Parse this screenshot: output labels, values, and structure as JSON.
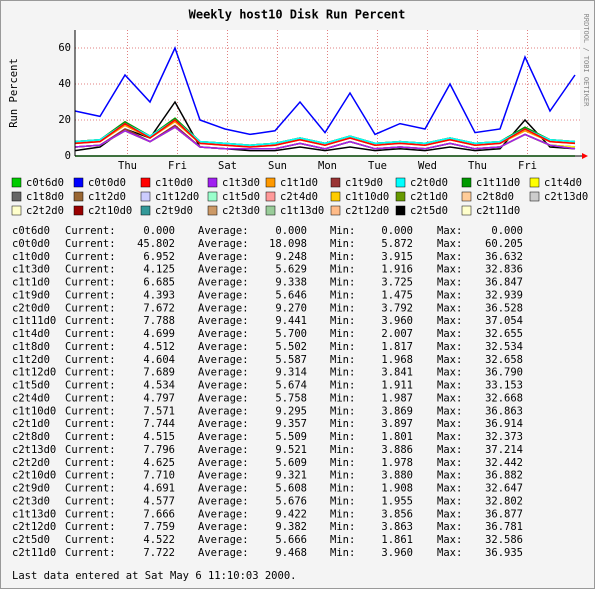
{
  "chart_data": {
    "type": "line",
    "title": "Weekly host10 Disk Run Percent",
    "y_label": "Run Percent",
    "side_note": "RRDTOOL / TOBI OETIKER",
    "xlim": [
      0,
      10.1
    ],
    "ylim": [
      0,
      70
    ],
    "xticks": [
      {
        "value": 1.05,
        "label": "Thu"
      },
      {
        "value": 2.05,
        "label": "Fri"
      },
      {
        "value": 3.05,
        "label": "Sat"
      },
      {
        "value": 4.05,
        "label": "Sun"
      },
      {
        "value": 5.05,
        "label": "Mon"
      },
      {
        "value": 6.05,
        "label": "Tue"
      },
      {
        "value": 7.05,
        "label": "Wed"
      },
      {
        "value": 8.05,
        "label": "Thu"
      },
      {
        "value": 9.05,
        "label": "Fri"
      }
    ],
    "yticks": [
      0,
      20,
      40,
      60
    ],
    "grid": true,
    "x": [
      0,
      0.5,
      1,
      1.5,
      2,
      2.5,
      3,
      3.5,
      4,
      4.5,
      5,
      5.5,
      6,
      6.5,
      7,
      7.5,
      8,
      8.5,
      9,
      9.5,
      10
    ],
    "series": [
      {
        "name": "c0t6d0",
        "color": "#00cc00",
        "values": [
          0,
          0,
          0,
          0,
          0,
          0,
          0,
          0,
          0,
          0,
          0,
          0,
          0,
          0,
          0,
          0,
          0,
          0,
          0,
          0,
          0
        ]
      },
      {
        "name": "c0t0d0",
        "color": "#0000ff",
        "values": [
          25,
          22,
          45,
          30,
          60,
          20,
          15,
          12,
          14,
          30,
          13,
          35,
          12,
          18,
          15,
          40,
          13,
          15,
          55,
          25,
          45
        ]
      },
      {
        "name": "c1t0d0",
        "color": "#ff0000",
        "values": [
          7,
          8,
          18,
          10,
          20,
          7,
          6,
          5,
          6,
          9,
          6,
          10,
          6,
          7,
          6,
          9,
          6,
          7,
          15,
          8,
          7
        ]
      },
      {
        "name": "c1t3d0",
        "color": "#a020f0",
        "values": [
          5,
          6,
          14,
          8,
          16,
          5,
          4,
          4,
          4,
          7,
          4,
          8,
          4,
          5,
          4,
          7,
          4,
          5,
          12,
          6,
          4
        ]
      },
      {
        "name": "c1t1d0",
        "color": "#ff9900",
        "values": [
          7,
          8,
          17,
          10,
          19,
          7,
          6,
          5,
          6,
          9,
          6,
          10,
          6,
          7,
          6,
          9,
          6,
          7,
          14,
          8,
          7
        ]
      },
      {
        "name": "c1t9d0",
        "color": "#993333",
        "values": [
          5,
          6,
          15,
          8,
          17,
          5,
          4,
          4,
          4,
          7,
          4,
          8,
          4,
          5,
          4,
          7,
          4,
          5,
          12,
          6,
          4
        ]
      },
      {
        "name": "c2t0d0",
        "color": "#00ffff",
        "values": [
          8,
          9,
          18,
          11,
          20,
          8,
          7,
          6,
          7,
          10,
          7,
          11,
          7,
          8,
          7,
          10,
          7,
          8,
          15,
          9,
          8
        ]
      },
      {
        "name": "c1t11d0",
        "color": "#009900",
        "values": [
          8,
          9,
          19,
          11,
          21,
          8,
          7,
          6,
          7,
          10,
          7,
          11,
          7,
          8,
          7,
          10,
          7,
          8,
          16,
          9,
          8
        ]
      },
      {
        "name": "c1t4d0",
        "color": "#ffff00",
        "values": [
          5,
          6,
          14,
          8,
          16,
          5,
          4,
          4,
          4,
          7,
          4,
          8,
          4,
          5,
          4,
          7,
          4,
          5,
          12,
          6,
          5
        ]
      },
      {
        "name": "c1t8d0",
        "color": "#666666",
        "values": [
          5,
          6,
          14,
          8,
          16,
          5,
          4,
          4,
          4,
          7,
          4,
          8,
          4,
          5,
          4,
          7,
          4,
          5,
          12,
          6,
          5
        ]
      },
      {
        "name": "c1t2d0",
        "color": "#996633",
        "values": [
          5,
          6,
          14,
          8,
          16,
          5,
          4,
          4,
          4,
          7,
          4,
          8,
          4,
          5,
          4,
          7,
          4,
          5,
          12,
          6,
          5
        ]
      },
      {
        "name": "c1t12d0",
        "color": "#ccccff",
        "values": [
          8,
          9,
          18,
          11,
          20,
          8,
          7,
          6,
          7,
          10,
          7,
          11,
          7,
          8,
          7,
          10,
          7,
          8,
          15,
          9,
          8
        ]
      },
      {
        "name": "c1t5d0",
        "color": "#99ffcc",
        "values": [
          5,
          6,
          15,
          8,
          17,
          5,
          4,
          4,
          4,
          7,
          4,
          8,
          4,
          5,
          4,
          7,
          4,
          5,
          12,
          6,
          5
        ]
      },
      {
        "name": "c2t4d0",
        "color": "#ff9999",
        "values": [
          5,
          6,
          15,
          8,
          17,
          5,
          4,
          4,
          4,
          7,
          4,
          8,
          4,
          5,
          4,
          7,
          4,
          5,
          12,
          6,
          5
        ]
      },
      {
        "name": "c1t10d0",
        "color": "#ffcc00",
        "values": [
          8,
          9,
          18,
          11,
          20,
          8,
          7,
          6,
          7,
          10,
          7,
          11,
          7,
          8,
          7,
          10,
          7,
          8,
          15,
          9,
          8
        ]
      },
      {
        "name": "c2t1d0",
        "color": "#669900",
        "values": [
          8,
          9,
          18,
          11,
          20,
          8,
          7,
          6,
          7,
          10,
          7,
          11,
          7,
          8,
          7,
          10,
          7,
          8,
          15,
          9,
          8
        ]
      },
      {
        "name": "c2t8d0",
        "color": "#ffcc99",
        "values": [
          5,
          6,
          14,
          8,
          16,
          5,
          4,
          4,
          4,
          7,
          4,
          8,
          4,
          5,
          4,
          7,
          4,
          5,
          12,
          6,
          5
        ]
      },
      {
        "name": "c2t13d0",
        "color": "#cccccc",
        "values": [
          8,
          9,
          19,
          11,
          21,
          8,
          7,
          6,
          7,
          10,
          7,
          11,
          7,
          8,
          7,
          10,
          7,
          8,
          16,
          9,
          8
        ]
      },
      {
        "name": "c2t2d0",
        "color": "#ffffcc",
        "values": [
          5,
          6,
          14,
          8,
          16,
          5,
          4,
          4,
          4,
          7,
          4,
          8,
          4,
          5,
          4,
          7,
          4,
          5,
          12,
          6,
          5
        ]
      },
      {
        "name": "c2t10d0",
        "color": "#990000",
        "values": [
          8,
          9,
          18,
          11,
          20,
          8,
          7,
          6,
          7,
          10,
          7,
          11,
          7,
          8,
          7,
          10,
          7,
          8,
          15,
          9,
          8
        ]
      },
      {
        "name": "c2t9d0",
        "color": "#339999",
        "values": [
          5,
          6,
          14,
          8,
          16,
          5,
          4,
          4,
          4,
          7,
          4,
          8,
          4,
          5,
          4,
          7,
          4,
          5,
          12,
          6,
          5
        ]
      },
      {
        "name": "c2t3d0",
        "color": "#cc9966",
        "values": [
          5,
          6,
          14,
          8,
          16,
          5,
          4,
          4,
          4,
          7,
          4,
          8,
          4,
          5,
          4,
          7,
          4,
          5,
          12,
          6,
          5
        ]
      },
      {
        "name": "c1t13d0",
        "color": "#99cc99",
        "values": [
          8,
          9,
          18,
          11,
          20,
          8,
          7,
          6,
          7,
          10,
          7,
          11,
          7,
          8,
          7,
          10,
          7,
          8,
          15,
          9,
          8
        ]
      },
      {
        "name": "c2t12d0",
        "color": "#ffbb88",
        "values": [
          8,
          9,
          19,
          11,
          21,
          8,
          7,
          6,
          7,
          10,
          7,
          11,
          7,
          8,
          7,
          10,
          7,
          8,
          16,
          9,
          8
        ]
      },
      {
        "name": "c2t5d0",
        "color": "#000000",
        "values": [
          3,
          5,
          15,
          10,
          30,
          5,
          4,
          3,
          3,
          5,
          3,
          5,
          3,
          4,
          3,
          5,
          3,
          4,
          20,
          5,
          4
        ]
      },
      {
        "name": "c2t11d0",
        "color": "#ffffcc",
        "values": [
          8,
          9,
          18,
          11,
          20,
          8,
          7,
          6,
          7,
          10,
          7,
          11,
          7,
          8,
          7,
          10,
          7,
          8,
          15,
          9,
          8
        ]
      }
    ]
  },
  "stats": {
    "columns": [
      "Current:",
      "Average:",
      "Min:",
      "Max:"
    ],
    "rows": [
      [
        "0.000",
        "0.000",
        "0.000",
        "0.000"
      ],
      [
        "45.802",
        "18.098",
        "5.872",
        "60.205"
      ],
      [
        "6.952",
        "9.248",
        "3.915",
        "36.632"
      ],
      [
        "4.125",
        "5.629",
        "1.916",
        "32.836"
      ],
      [
        "6.685",
        "9.338",
        "3.725",
        "36.847"
      ],
      [
        "4.393",
        "5.646",
        "1.475",
        "32.939"
      ],
      [
        "7.672",
        "9.270",
        "3.792",
        "36.528"
      ],
      [
        "7.788",
        "9.441",
        "3.960",
        "37.054"
      ],
      [
        "4.699",
        "5.700",
        "2.007",
        "32.655"
      ],
      [
        "4.512",
        "5.502",
        "1.817",
        "32.534"
      ],
      [
        "4.604",
        "5.587",
        "1.968",
        "32.658"
      ],
      [
        "7.689",
        "9.314",
        "3.841",
        "36.790"
      ],
      [
        "4.534",
        "5.674",
        "1.911",
        "33.153"
      ],
      [
        "4.797",
        "5.758",
        "1.987",
        "32.668"
      ],
      [
        "7.571",
        "9.295",
        "3.869",
        "36.863"
      ],
      [
        "7.744",
        "9.357",
        "3.897",
        "36.914"
      ],
      [
        "4.515",
        "5.509",
        "1.801",
        "32.373"
      ],
      [
        "7.796",
        "9.521",
        "3.886",
        "37.214"
      ],
      [
        "4.625",
        "5.609",
        "1.978",
        "32.442"
      ],
      [
        "7.710",
        "9.321",
        "3.880",
        "36.882"
      ],
      [
        "4.691",
        "5.608",
        "1.908",
        "32.647"
      ],
      [
        "4.577",
        "5.676",
        "1.955",
        "32.802"
      ],
      [
        "7.666",
        "9.422",
        "3.856",
        "36.877"
      ],
      [
        "7.759",
        "9.382",
        "3.863",
        "36.781"
      ],
      [
        "4.522",
        "5.666",
        "1.861",
        "32.586"
      ],
      [
        "7.722",
        "9.468",
        "3.960",
        "36.935"
      ]
    ]
  },
  "footer": "Last data entered at Sat May  6 11:10:03 2000."
}
